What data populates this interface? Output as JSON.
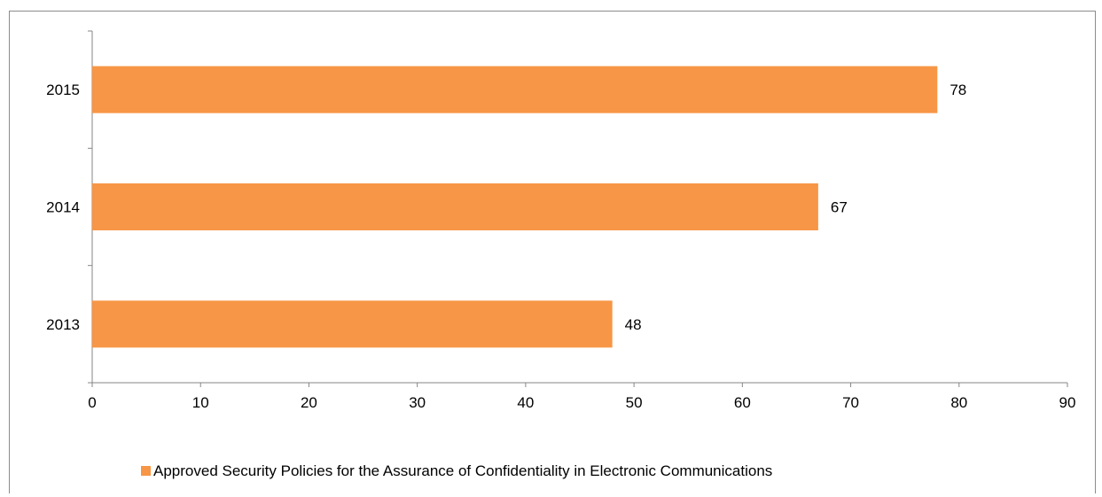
{
  "chart_data": {
    "type": "bar",
    "orientation": "horizontal",
    "categories": [
      "2013",
      "2014",
      "2015"
    ],
    "series": [
      {
        "name": "Approved Security Policies for the Assurance of Confidentiality in Electronic Communications",
        "values": [
          48,
          67,
          78
        ],
        "color": "#F79646"
      }
    ],
    "data_labels": [
      "48",
      "67",
      "78"
    ],
    "x_ticks": [
      "0",
      "10",
      "20",
      "30",
      "40",
      "50",
      "60",
      "70",
      "80",
      "90"
    ],
    "xlim": [
      0,
      90
    ],
    "grid": false,
    "legend_position": "bottom"
  }
}
